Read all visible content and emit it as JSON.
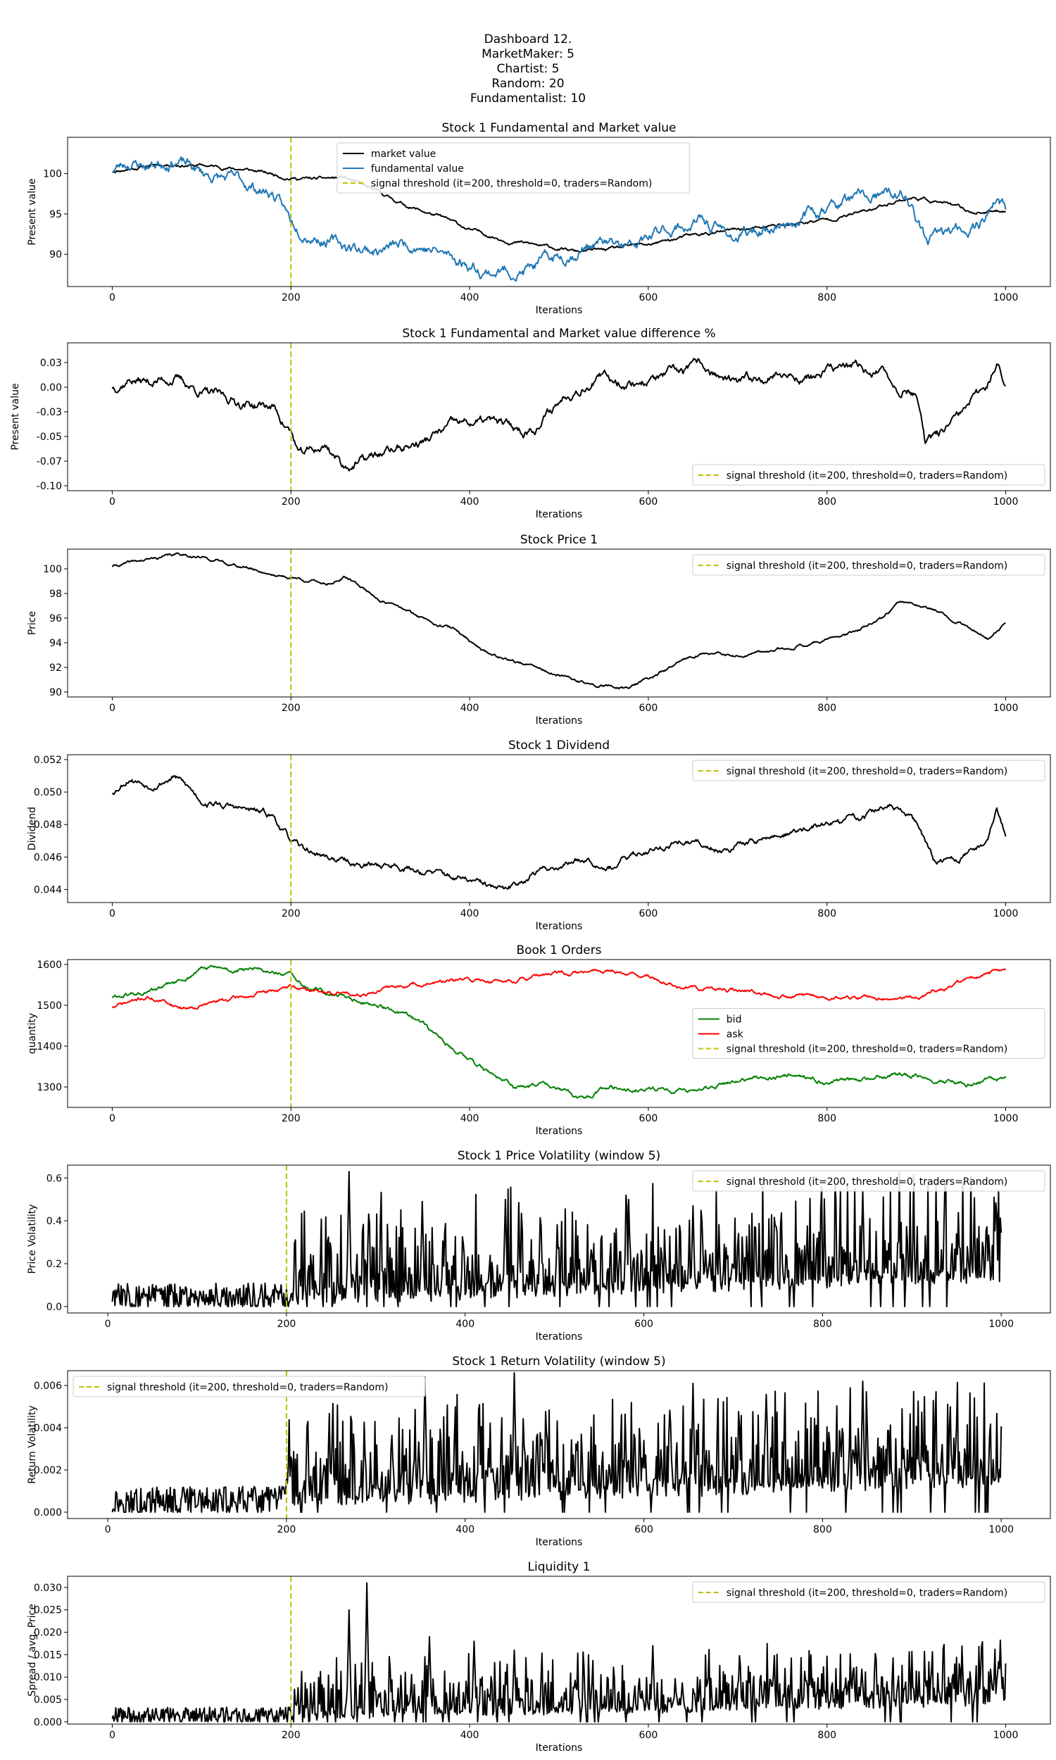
{
  "header": {
    "lines": [
      "Dashboard 12.",
      "MarketMaker: 5",
      "Chartist: 5",
      "Random: 20",
      "Fundamentalist: 10"
    ]
  },
  "colors": {
    "market": "#000000",
    "fundamental": "#1f77b4",
    "threshold": "#bfbf00",
    "bid": "#008000",
    "ask": "#ff0000"
  },
  "threshold_label": "signal threshold (it=200, threshold=0, traders=Random)",
  "chart_data": [
    {
      "type": "line",
      "title": "Stock 1 Fundamental and Market value",
      "xlabel": "Iterations",
      "ylabel": "Present value",
      "xlim": [
        -50,
        1050
      ],
      "ylim": [
        86,
        104.5
      ],
      "xticks": [
        0,
        200,
        400,
        600,
        800,
        1000
      ],
      "yticks": [
        90,
        95,
        100
      ],
      "legend": "top-center",
      "threshold_x": 200,
      "series": [
        {
          "name": "market value",
          "color": "#000000",
          "noise": 0.25,
          "seed": 11,
          "x": [
            0,
            40,
            70,
            100,
            150,
            200,
            230,
            260,
            290,
            330,
            370,
            400,
            440,
            480,
            520,
            560,
            600,
            650,
            700,
            750,
            800,
            850,
            880,
            900,
            930,
            960,
            990,
            1000
          ],
          "y": [
            100.3,
            101,
            101.2,
            101,
            100.5,
            99.5,
            99.3,
            99.5,
            98,
            96,
            94.5,
            93,
            91.8,
            91,
            90.3,
            90.6,
            91.2,
            92.3,
            93,
            93.6,
            94.3,
            95.5,
            96.8,
            97,
            96.4,
            95.2,
            95.3,
            95.5
          ]
        },
        {
          "name": "fundamental value",
          "color": "#1f77b4",
          "noise": 0.9,
          "seed": 23,
          "x": [
            0,
            20,
            40,
            70,
            100,
            140,
            180,
            200,
            230,
            260,
            300,
            340,
            380,
            420,
            460,
            500,
            540,
            580,
            620,
            660,
            700,
            740,
            780,
            820,
            860,
            890,
            910,
            940,
            970,
            990,
            1000
          ],
          "y": [
            100.5,
            101.5,
            101,
            102,
            100,
            99,
            97.5,
            94,
            92.5,
            91,
            90.5,
            91.5,
            89.5,
            88,
            88,
            89.5,
            91.5,
            90.5,
            93,
            94,
            92,
            93.5,
            95,
            96.5,
            97,
            97,
            91.5,
            92.5,
            94,
            97,
            95.5
          ]
        }
      ]
    },
    {
      "type": "line",
      "title": "Stock 1 Fundamental and Market value difference %",
      "xlabel": "Iterations",
      "ylabel": "Present value",
      "xlim": [
        -50,
        1050
      ],
      "ylim": [
        -0.105,
        0.045
      ],
      "xticks": [
        0,
        200,
        400,
        600,
        800,
        1000
      ],
      "yticks": [
        -0.1,
        -0.075,
        -0.05,
        -0.025,
        0.0,
        0.025
      ],
      "legend": "bottom-right",
      "threshold_x": 200,
      "series": [
        {
          "color": "#000000",
          "noise": 0.006,
          "seed": 37,
          "x": [
            0,
            20,
            40,
            70,
            100,
            140,
            180,
            200,
            210,
            240,
            260,
            280,
            310,
            350,
            380,
            420,
            460,
            480,
            510,
            540,
            580,
            620,
            660,
            700,
            740,
            780,
            820,
            860,
            880,
            900,
            910,
            940,
            970,
            980,
            990,
            1000
          ],
          "y": [
            0.0,
            0.01,
            0.005,
            0.01,
            -0.005,
            -0.015,
            -0.02,
            -0.045,
            -0.07,
            -0.06,
            -0.08,
            -0.075,
            -0.065,
            -0.055,
            -0.04,
            -0.035,
            -0.045,
            -0.035,
            -0.005,
            0.01,
            0.005,
            0.01,
            0.02,
            0.0,
            0.015,
            0.01,
            0.02,
            0.015,
            0.0,
            -0.005,
            -0.06,
            -0.04,
            -0.01,
            0.005,
            0.025,
            0.0
          ]
        }
      ]
    },
    {
      "type": "line",
      "title": "Stock Price 1",
      "xlabel": "Iterations",
      "ylabel": "Price",
      "xlim": [
        -50,
        1050
      ],
      "ylim": [
        89.6,
        101.6
      ],
      "xticks": [
        0,
        200,
        400,
        600,
        800,
        1000
      ],
      "yticks": [
        90,
        92,
        94,
        96,
        98,
        100
      ],
      "legend": "top-right",
      "threshold_x": 200,
      "series": [
        {
          "color": "#000000",
          "noise": 0.15,
          "seed": 41,
          "x": [
            0,
            30,
            60,
            80,
            110,
            150,
            190,
            210,
            240,
            260,
            280,
            300,
            340,
            380,
            420,
            460,
            500,
            540,
            580,
            620,
            660,
            700,
            740,
            780,
            820,
            860,
            880,
            900,
            930,
            960,
            980,
            1000
          ],
          "y": [
            100.2,
            100.6,
            101,
            101.2,
            100.8,
            100.1,
            99.4,
            99.2,
            98.8,
            99.3,
            98.5,
            97.5,
            96.2,
            95.2,
            93.2,
            92.3,
            91.3,
            90.5,
            90.4,
            91.8,
            93.2,
            92.8,
            93.3,
            94,
            94.6,
            95.8,
            97.2,
            97.2,
            96.4,
            95.3,
            94.4,
            95.5
          ]
        }
      ]
    },
    {
      "type": "line",
      "title": "Stock 1 Dividend",
      "xlabel": "Iterations",
      "ylabel": "Dividend",
      "xlim": [
        -50,
        1050
      ],
      "ylim": [
        0.0432,
        0.0523
      ],
      "xticks": [
        0,
        200,
        400,
        600,
        800,
        1000
      ],
      "yticks": [
        0.044,
        0.046,
        0.048,
        0.05,
        0.052
      ],
      "legend": "top-right",
      "threshold_x": 200,
      "series": [
        {
          "color": "#000000",
          "noise": 0.00025,
          "seed": 53,
          "x": [
            0,
            20,
            40,
            70,
            100,
            140,
            180,
            200,
            210,
            240,
            280,
            320,
            360,
            400,
            440,
            470,
            500,
            530,
            560,
            600,
            640,
            680,
            720,
            760,
            800,
            840,
            870,
            900,
            920,
            950,
            980,
            990,
            1000
          ],
          "y": [
            0.05,
            0.051,
            0.0505,
            0.051,
            0.0495,
            0.049,
            0.0485,
            0.047,
            0.0465,
            0.046,
            0.0455,
            0.0455,
            0.045,
            0.0445,
            0.0438,
            0.045,
            0.0455,
            0.046,
            0.0455,
            0.0465,
            0.047,
            0.0465,
            0.047,
            0.0475,
            0.048,
            0.0485,
            0.0492,
            0.048,
            0.0457,
            0.046,
            0.047,
            0.049,
            0.0475
          ]
        }
      ]
    },
    {
      "type": "line",
      "title": "Book 1 Orders",
      "xlabel": "Iterations",
      "ylabel": "quantity",
      "xlim": [
        -50,
        1050
      ],
      "ylim": [
        1250,
        1612
      ],
      "xticks": [
        0,
        200,
        400,
        600,
        800,
        1000
      ],
      "yticks": [
        1300,
        1400,
        1500,
        1600
      ],
      "legend": "center-right",
      "threshold_x": 200,
      "series": [
        {
          "name": "bid",
          "color": "#008000",
          "noise": 7,
          "seed": 61,
          "x": [
            0,
            40,
            80,
            100,
            140,
            180,
            200,
            220,
            260,
            300,
            340,
            380,
            420,
            450,
            480,
            520,
            560,
            600,
            660,
            700,
            760,
            800,
            840,
            880,
            920,
            960,
            1000
          ],
          "y": [
            1520,
            1530,
            1560,
            1590,
            1585,
            1580,
            1570,
            1540,
            1520,
            1500,
            1460,
            1400,
            1340,
            1295,
            1310,
            1275,
            1300,
            1295,
            1290,
            1315,
            1330,
            1310,
            1320,
            1330,
            1320,
            1310,
            1325
          ]
        },
        {
          "name": "ask",
          "color": "#ff0000",
          "noise": 6,
          "seed": 71,
          "x": [
            0,
            40,
            80,
            120,
            160,
            200,
            240,
            280,
            320,
            360,
            400,
            440,
            500,
            560,
            600,
            640,
            700,
            760,
            800,
            860,
            900,
            940,
            980,
            1000
          ],
          "y": [
            1495,
            1520,
            1495,
            1510,
            1525,
            1545,
            1530,
            1530,
            1545,
            1555,
            1560,
            1560,
            1575,
            1585,
            1570,
            1540,
            1535,
            1525,
            1520,
            1515,
            1520,
            1545,
            1575,
            1590
          ]
        }
      ]
    },
    {
      "type": "line",
      "title": "Stock 1 Price Volatility (window 5)",
      "xlabel": "Iterations",
      "ylabel": "Price Volatility",
      "xlim": [
        -45,
        1055
      ],
      "ylim": [
        -0.03,
        0.66
      ],
      "xticks": [
        0,
        200,
        400,
        600,
        800,
        1000
      ],
      "yticks": [
        0.0,
        0.2,
        0.4,
        0.6
      ],
      "legend": "top-right",
      "threshold_x": 200,
      "series": [
        {
          "color": "#000000",
          "spiky": true,
          "x0": 5,
          "seed": 83,
          "x": [
            5,
            200,
            1000
          ],
          "y": [
            0.05,
            0.05,
            0.16
          ],
          "pre_amp": 0.1,
          "post_amp": 0.5,
          "peaks": [
            [
              270,
              0.63
            ],
            [
              352,
              0.49
            ],
            [
              445,
              0.5
            ],
            [
              845,
              0.54
            ],
            [
              655,
              0.47
            ]
          ]
        }
      ]
    },
    {
      "type": "line",
      "title": "Stock 1 Return Volatility (window 5)",
      "xlabel": "Iterations",
      "ylabel": "Return Volatility",
      "xlim": [
        -45,
        1055
      ],
      "ylim": [
        -0.0003,
        0.0067
      ],
      "xticks": [
        0,
        200,
        400,
        600,
        800,
        1000
      ],
      "yticks": [
        0.0,
        0.002,
        0.004,
        0.006
      ],
      "legend": "top-left",
      "threshold_x": 200,
      "series": [
        {
          "color": "#000000",
          "spiky": true,
          "x0": 5,
          "seed": 97,
          "x": [
            5,
            200,
            1000
          ],
          "y": [
            0.0005,
            0.0006,
            0.0017
          ],
          "pre_amp": 0.0011,
          "post_amp": 0.0048,
          "peaks": [
            [
              355,
              0.0064
            ],
            [
              455,
              0.0066
            ],
            [
              655,
              0.0061
            ],
            [
              845,
              0.0062
            ]
          ]
        }
      ]
    },
    {
      "type": "line",
      "title": "Liquidity 1",
      "xlabel": "Iterations",
      "ylabel": "Spread / avg. Price",
      "xlim": [
        -50,
        1050
      ],
      "ylim": [
        -0.0005,
        0.0325
      ],
      "xticks": [
        0,
        200,
        400,
        600,
        800,
        1000
      ],
      "yticks": [
        0.0,
        0.005,
        0.01,
        0.015,
        0.02,
        0.025,
        0.03
      ],
      "legend": "top-right",
      "threshold_x": 200,
      "series": [
        {
          "color": "#000000",
          "spiky": true,
          "x0": 0,
          "seed": 109,
          "x": [
            0,
            200,
            1000
          ],
          "y": [
            0.0015,
            0.0015,
            0.005
          ],
          "pre_amp": 0.003,
          "post_amp": 0.014,
          "peaks": [
            [
              265,
              0.025
            ],
            [
              285,
              0.031
            ],
            [
              355,
              0.019
            ],
            [
              405,
              0.018
            ],
            [
              450,
              0.016
            ],
            [
              605,
              0.017
            ]
          ]
        }
      ]
    }
  ]
}
